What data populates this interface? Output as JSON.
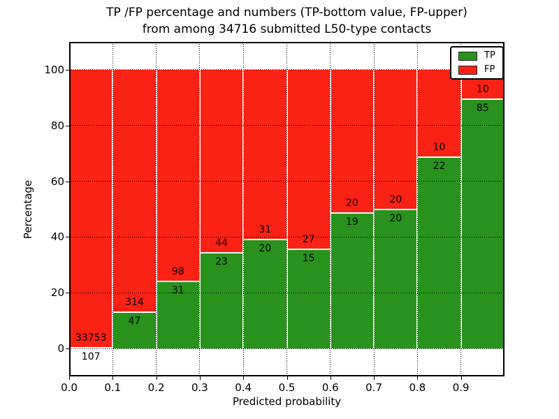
{
  "title": {
    "line1": "TP /FP percentage and numbers (TP-bottom value, FP-upper)",
    "line2": "from among 34716 submitted L50-type contacts"
  },
  "chart_data": {
    "type": "bar",
    "stacked": true,
    "orientation": "vertical",
    "title": "TP /FP percentage and numbers (TP-bottom value, FP-upper) from among 34716 submitted L50-type contacts",
    "xlabel": "Predicted probability",
    "ylabel": "Percentage",
    "xlim": [
      0.0,
      1.0
    ],
    "ylim": [
      -10,
      110
    ],
    "total_contacts": 34716,
    "bar_unit": "percent of bin total (TP% + FP% stack to 100)",
    "bin_edges": [
      0.0,
      0.1,
      0.2,
      0.3,
      0.4,
      0.5,
      0.6,
      0.7,
      0.8,
      0.9,
      1.0
    ],
    "categories": [
      "0.0-0.1",
      "0.1-0.2",
      "0.2-0.3",
      "0.3-0.4",
      "0.4-0.5",
      "0.5-0.6",
      "0.6-0.7",
      "0.7-0.8",
      "0.8-0.9",
      "0.9-1.0"
    ],
    "series": [
      {
        "name": "TP",
        "color": "#28921c",
        "counts": [
          107,
          47,
          31,
          23,
          20,
          15,
          19,
          20,
          22,
          85
        ]
      },
      {
        "name": "FP",
        "color": "#fa2115",
        "counts": [
          33753,
          314,
          98,
          44,
          31,
          27,
          20,
          20,
          10,
          10
        ]
      }
    ],
    "tp_percent": [
      0.32,
      13.02,
      24.03,
      34.33,
      39.22,
      35.71,
      48.72,
      50.0,
      68.75,
      89.47
    ],
    "xticks": [
      {
        "v": 0.0,
        "label": "0.0"
      },
      {
        "v": 0.1,
        "label": "0.1"
      },
      {
        "v": 0.2,
        "label": "0.2"
      },
      {
        "v": 0.3,
        "label": "0.3"
      },
      {
        "v": 0.4,
        "label": "0.4"
      },
      {
        "v": 0.5,
        "label": "0.5"
      },
      {
        "v": 0.6,
        "label": "0.6"
      },
      {
        "v": 0.7,
        "label": "0.7"
      },
      {
        "v": 0.8,
        "label": "0.8"
      },
      {
        "v": 0.9,
        "label": "0.9"
      }
    ],
    "yticks": [
      {
        "v": 0,
        "label": "0"
      },
      {
        "v": 20,
        "label": "20"
      },
      {
        "v": 40,
        "label": "40"
      },
      {
        "v": 60,
        "label": "60"
      },
      {
        "v": 80,
        "label": "80"
      },
      {
        "v": 100,
        "label": "100"
      }
    ],
    "grid": "dotted",
    "grid_color": "#000000",
    "legend": {
      "position": "upper-right",
      "entries": [
        {
          "label": "TP",
          "color": "#28921c"
        },
        {
          "label": "FP",
          "color": "#fa2115"
        }
      ]
    }
  }
}
